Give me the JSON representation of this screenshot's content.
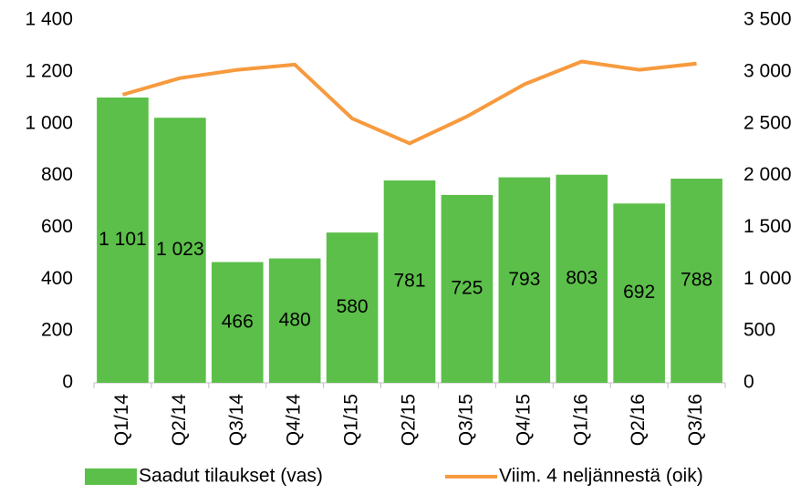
{
  "chart_data": {
    "type": "bar",
    "categories": [
      "Q1/14",
      "Q2/14",
      "Q3/14",
      "Q4/14",
      "Q1/15",
      "Q2/15",
      "Q3/15",
      "Q4/15",
      "Q1/16",
      "Q2/16",
      "Q3/16"
    ],
    "series": [
      {
        "name": "Saadut tilaukset (vas)",
        "type": "bar",
        "color": "#5cbf4a",
        "values": [
          1101,
          1023,
          466,
          480,
          580,
          781,
          725,
          793,
          803,
          692,
          788
        ],
        "value_labels": [
          "1 101",
          "1 023",
          "466",
          "480",
          "580",
          "781",
          "725",
          "793",
          "803",
          "692",
          "788"
        ]
      },
      {
        "name": "Viim. 4 neljännestä (oik)",
        "type": "line",
        "axis": "y2",
        "color": "#f79a3e",
        "values": [
          2780,
          2940,
          3020,
          3070,
          2550,
          2310,
          2570,
          2880,
          3100,
          3020,
          3080
        ]
      }
    ],
    "ylim": [
      0,
      1400
    ],
    "yticks": [
      0,
      200,
      400,
      600,
      800,
      {
        "value": 1000,
        "label": "1 000"
      },
      {
        "value": 1200,
        "label": "1 200"
      },
      {
        "value": 1400,
        "label": "1 400"
      }
    ],
    "y2lim": [
      0,
      3500
    ],
    "y2ticks": [
      0,
      500,
      {
        "value": 1000,
        "label": "1 000"
      },
      {
        "value": 1500,
        "label": "1 500"
      },
      {
        "value": 2000,
        "label": "2 000"
      },
      {
        "value": 2500,
        "label": "2 500"
      },
      {
        "value": 3000,
        "label": "3 000"
      },
      {
        "value": 3500,
        "label": "3 500"
      }
    ],
    "legend": "bottom"
  }
}
